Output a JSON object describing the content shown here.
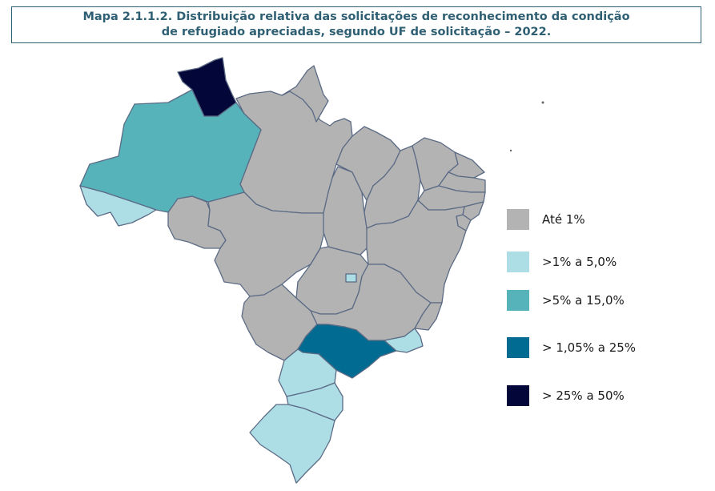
{
  "title": {
    "line1": "Mapa 2.1.1.2. Distribuição relativa das solicitações de reconhecimento da condição",
    "line2": "de refugiado apreciadas, segundo UF de solicitação – 2022."
  },
  "legend": [
    {
      "label": "Até 1%",
      "color": "#b3b3b3"
    },
    {
      "label": ">1% a 5,0%",
      "color": "#addde5"
    },
    {
      "label": ">5% a 15,0%",
      "color": "#56b3ba"
    },
    {
      "label": "> 1,05% a 25%",
      "color": "#016b91"
    },
    {
      "label": "> 25% a 50%",
      "color": "#030638"
    }
  ],
  "states": [
    {
      "id": "RR",
      "class": 4
    },
    {
      "id": "AM",
      "class": 2
    },
    {
      "id": "AC",
      "class": 1
    },
    {
      "id": "SP",
      "class": 3
    },
    {
      "id": "RJ",
      "class": 1
    },
    {
      "id": "PR",
      "class": 1
    },
    {
      "id": "SC",
      "class": 1
    },
    {
      "id": "RS",
      "class": 1
    },
    {
      "id": "DF",
      "class": 1
    },
    {
      "id": "PA",
      "class": 0
    },
    {
      "id": "AP",
      "class": 0
    },
    {
      "id": "RO",
      "class": 0
    },
    {
      "id": "MT",
      "class": 0
    },
    {
      "id": "MS",
      "class": 0
    },
    {
      "id": "GO",
      "class": 0
    },
    {
      "id": "TO",
      "class": 0
    },
    {
      "id": "MA",
      "class": 0
    },
    {
      "id": "PI",
      "class": 0
    },
    {
      "id": "CE",
      "class": 0
    },
    {
      "id": "RN",
      "class": 0
    },
    {
      "id": "PB",
      "class": 0
    },
    {
      "id": "PE",
      "class": 0
    },
    {
      "id": "AL",
      "class": 0
    },
    {
      "id": "SE",
      "class": 0
    },
    {
      "id": "BA",
      "class": 0
    },
    {
      "id": "MG",
      "class": 0
    },
    {
      "id": "ES",
      "class": 0
    }
  ]
}
